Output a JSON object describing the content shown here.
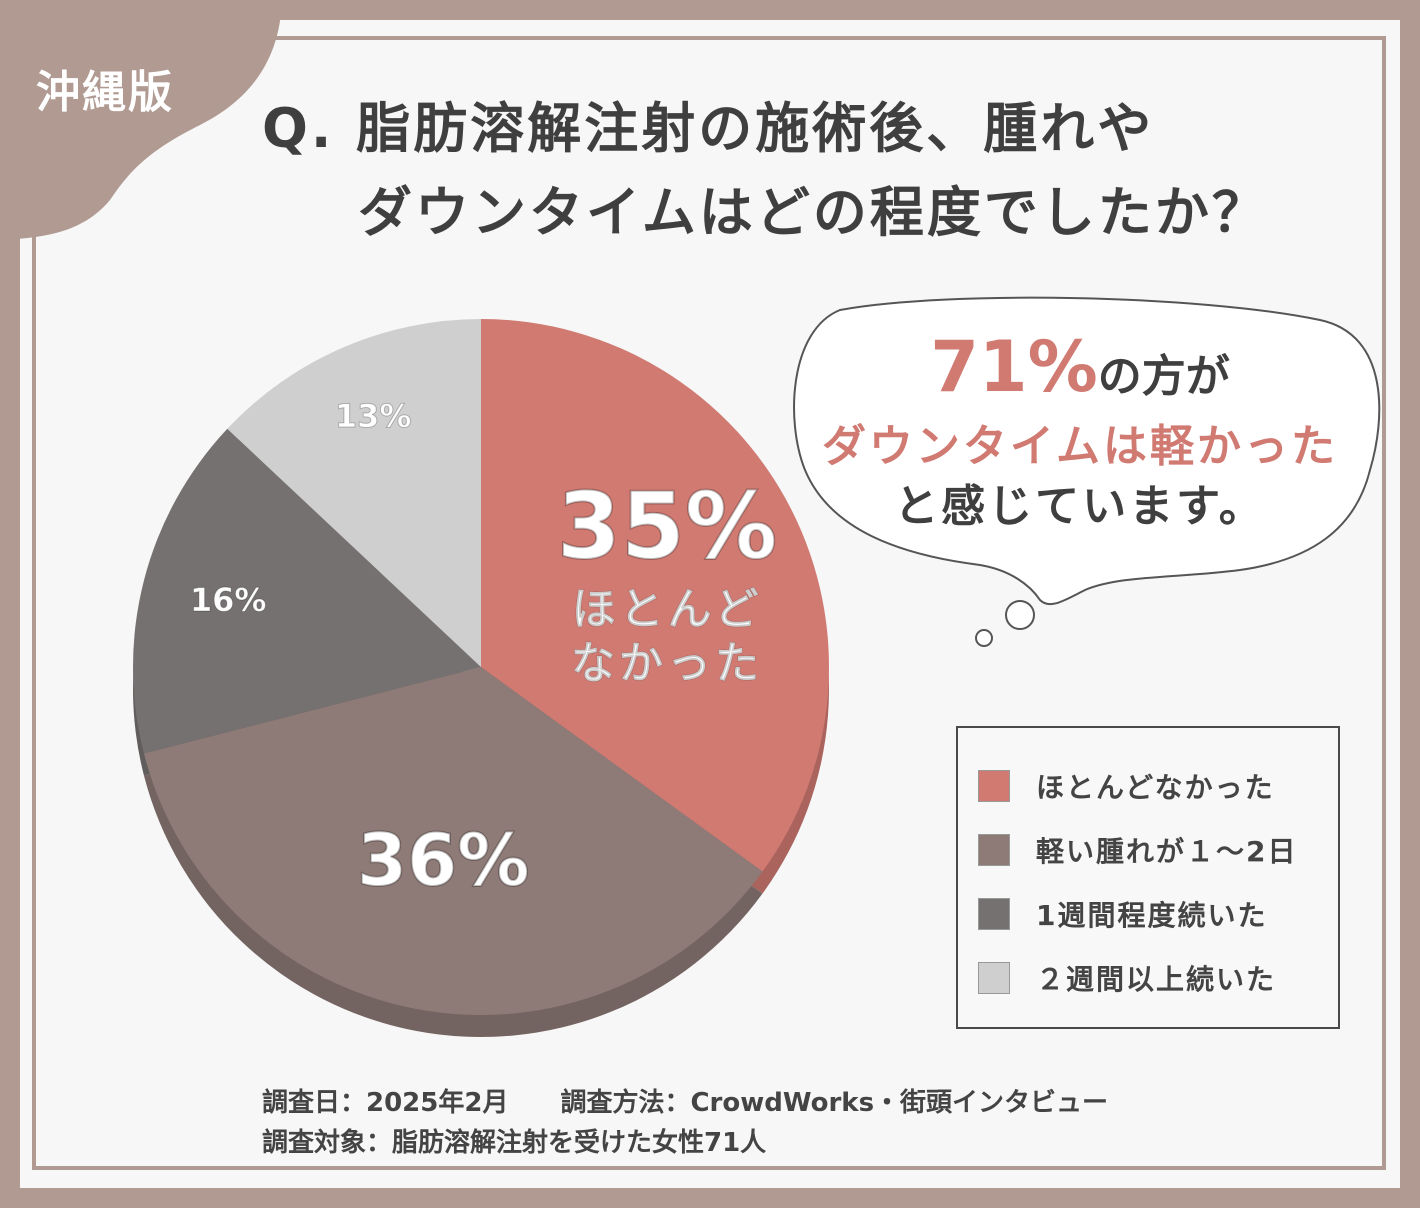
{
  "region_label": "沖縄版",
  "title": {
    "line1": "Q. 脂肪溶解注射の施術後、腫れや",
    "line2": "ダウンタイムはどの程度でしたか？"
  },
  "callout": {
    "percent": "71%",
    "line1_rest": "の方が",
    "line2": "ダウンタイムは軽かった",
    "line3": "と感じています。"
  },
  "colors": {
    "frame": "#b09a92",
    "accent": "#d07a72"
  },
  "chart_data": {
    "type": "pie",
    "start": "top",
    "direction": "clockwise",
    "slices": [
      {
        "label": "ほとんどなかった",
        "value": 35,
        "display": "35%",
        "inner_label": "ほとんど\nなかった",
        "color": "#d07a72"
      },
      {
        "label": "軽い腫れが１～2日",
        "value": 36,
        "display": "36%",
        "color": "#8e7a76"
      },
      {
        "label": "1週間程度続いた",
        "value": 16,
        "display": "16%",
        "color": "#757170"
      },
      {
        "label": "２週間以上続いた",
        "value": 13,
        "display": "13%",
        "color": "#cfcfcf"
      }
    ],
    "legend_placement": "bottom-right"
  },
  "footer": {
    "line1": "調査日：2025年2月　　調査方法：CrowdWorks・街頭インタビュー",
    "line2": "調査対象：脂肪溶解注射を受けた女性71人"
  }
}
